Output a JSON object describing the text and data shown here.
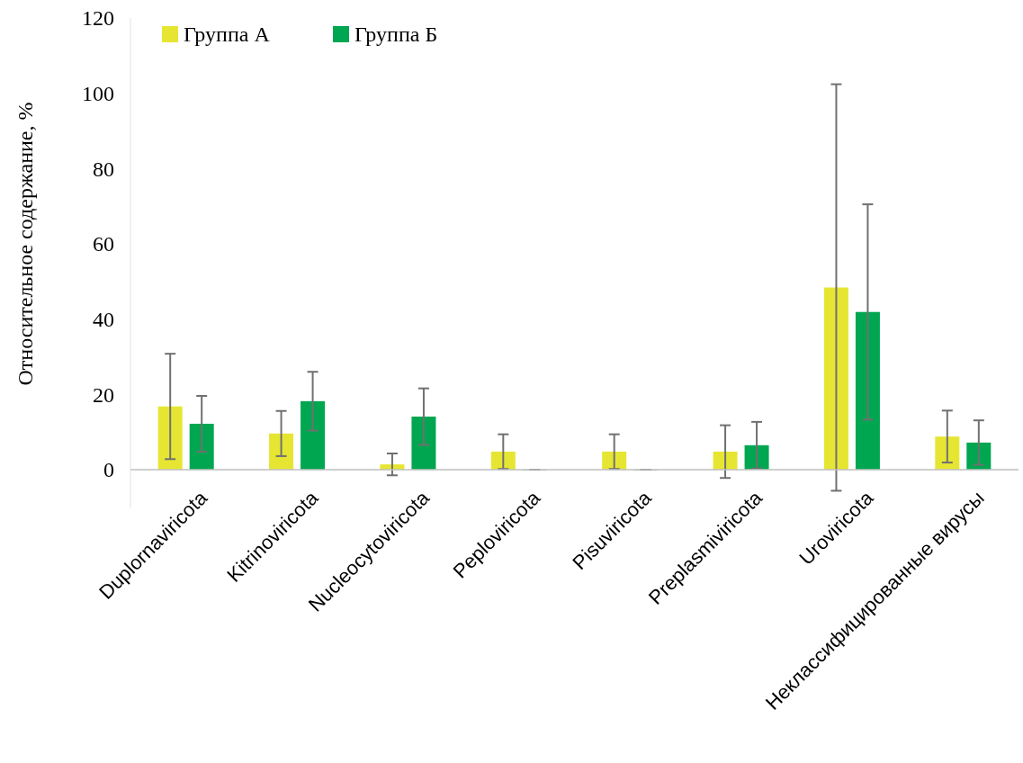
{
  "chart_data": {
    "type": "bar",
    "ylabel": "Относительное содержание, %",
    "categories": [
      "Duplornaviricota",
      "Kitrinoviricota",
      "Nucleocytoviricota",
      "Peploviricota",
      "Pisuviricota",
      "Preplasmiviricota",
      "Uroviricota",
      "Неклассифицированные вирусы"
    ],
    "series": [
      {
        "name": "Группа А",
        "color": "#e6e632",
        "values": [
          16.8,
          9.6,
          1.4,
          4.8,
          4.8,
          4.8,
          48.4,
          8.8
        ],
        "errors": [
          14,
          6,
          2.9,
          4.6,
          4.6,
          7,
          54,
          6.9
        ]
      },
      {
        "name": "Группа Б",
        "color": "#00a650",
        "values": [
          12.2,
          18.2,
          14.1,
          0,
          0,
          6.5,
          41.9,
          7.2
        ],
        "errors": [
          7.4,
          7.8,
          7.5,
          0,
          0,
          6.2,
          28.6,
          5.9
        ]
      }
    ],
    "ylim": [
      -10,
      120
    ],
    "yticks": [
      0,
      20,
      40,
      60,
      80,
      100,
      120
    ],
    "grid": false,
    "legend": "top left"
  }
}
